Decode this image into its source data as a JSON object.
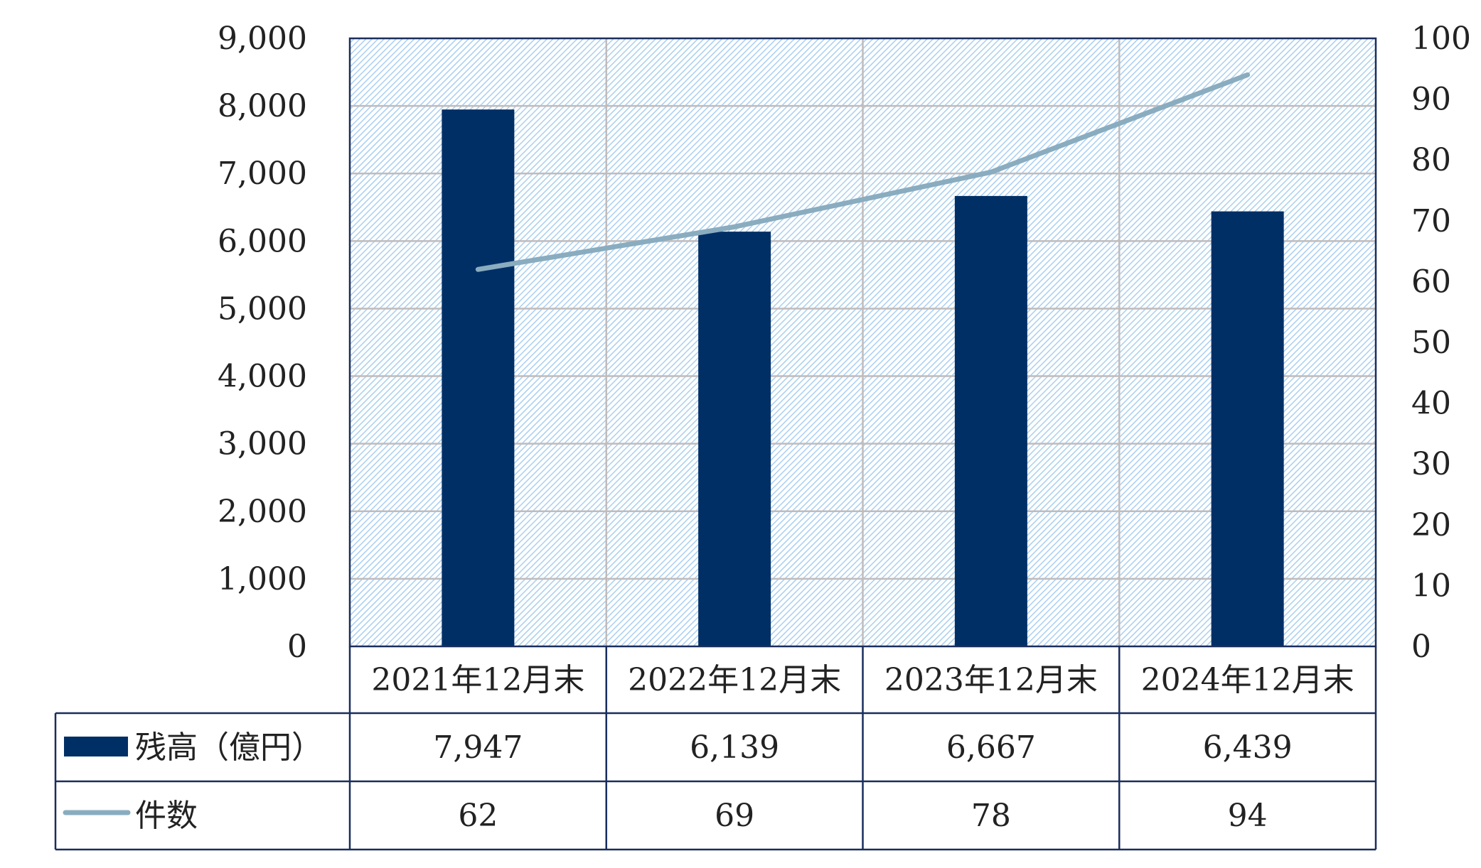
{
  "chart_data": {
    "type": "bar",
    "categories": [
      "2021年12月末",
      "2022年12月末",
      "2023年12月末",
      "2024年12月末"
    ],
    "series": [
      {
        "name": "残高（億円）",
        "type": "bar",
        "axis": "left",
        "values": [
          7947,
          6139,
          6667,
          6439
        ],
        "labels": [
          "7,947",
          "6,139",
          "6,667",
          "6,439"
        ],
        "color": "#002f66"
      },
      {
        "name": "件数",
        "type": "line",
        "axis": "right",
        "values": [
          62,
          69,
          78,
          94
        ],
        "labels": [
          "62",
          "69",
          "78",
          "94"
        ],
        "color": "#8aacbf"
      }
    ],
    "y_left": {
      "ylim": [
        0,
        9000
      ],
      "ticks": [
        "0",
        "1,000",
        "2,000",
        "3,000",
        "4,000",
        "5,000",
        "6,000",
        "7,000",
        "8,000",
        "9,000"
      ]
    },
    "y_right": {
      "ylim": [
        0,
        100
      ],
      "ticks": [
        "0",
        "10",
        "20",
        "30",
        "40",
        "50",
        "60",
        "70",
        "80",
        "90",
        "100"
      ]
    },
    "grid": true,
    "legend": "data-table"
  },
  "colors": {
    "bar": "#002f66",
    "line": "#8aacbf",
    "border": "#1a2e5c",
    "grid": "#c0bcbc",
    "hatch": "#a9cff1"
  }
}
